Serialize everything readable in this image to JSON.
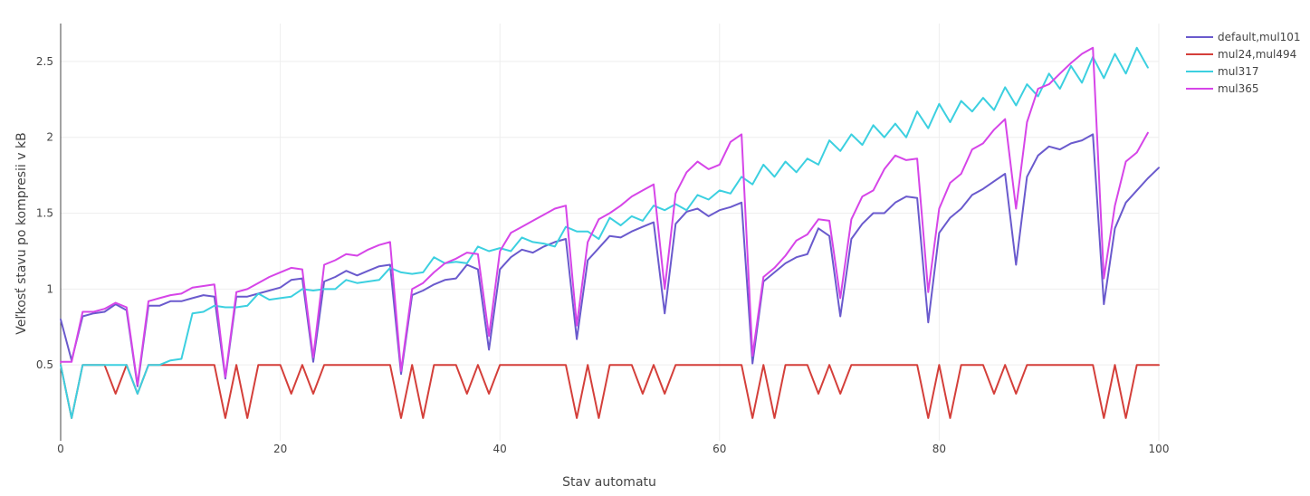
{
  "chart_data": {
    "type": "line",
    "xlabel": "Stav automatu",
    "ylabel": "Veľkosť stavu po kompresii v kB",
    "xlim": [
      0,
      100
    ],
    "ylim": [
      0,
      2.75
    ],
    "x_ticks": [
      0,
      20,
      40,
      60,
      80,
      100
    ],
    "y_ticks": [
      0.5,
      1,
      1.5,
      2,
      2.5
    ],
    "x_tick_labels": [
      "0",
      "20",
      "40",
      "60",
      "80",
      "100"
    ],
    "y_tick_labels": [
      "0.5",
      "1",
      "1.5",
      "2",
      "2.5"
    ],
    "grid": true,
    "legend_position": "top-right",
    "series": [
      {
        "name": "default,mul101",
        "color": "#6a5acd",
        "x": [
          0,
          1,
          2,
          3,
          4,
          5,
          6,
          7,
          8,
          9,
          10,
          11,
          12,
          13,
          14,
          15,
          16,
          17,
          18,
          19,
          20,
          21,
          22,
          23,
          24,
          25,
          26,
          27,
          28,
          29,
          30,
          31,
          32,
          33,
          34,
          35,
          36,
          37,
          38,
          39,
          40,
          41,
          42,
          43,
          44,
          45,
          46,
          47,
          48,
          49,
          50,
          51,
          52,
          53,
          54,
          55,
          56,
          57,
          58,
          59,
          60,
          61,
          62,
          63,
          64,
          65,
          66,
          67,
          68,
          69,
          70,
          71,
          72,
          73,
          74,
          75,
          76,
          77,
          78,
          79,
          80,
          81,
          82,
          83,
          84,
          85,
          86,
          87,
          88,
          89,
          90,
          91,
          92,
          93,
          94,
          95,
          96,
          97,
          98,
          99,
          100
        ],
        "y": [
          0.8,
          0.53,
          0.82,
          0.84,
          0.85,
          0.9,
          0.86,
          0.36,
          0.89,
          0.89,
          0.92,
          0.92,
          0.94,
          0.96,
          0.95,
          0.41,
          0.95,
          0.95,
          0.97,
          0.99,
          1.01,
          1.06,
          1.07,
          0.52,
          1.05,
          1.08,
          1.12,
          1.09,
          1.12,
          1.15,
          1.16,
          0.44,
          0.96,
          0.99,
          1.03,
          1.06,
          1.07,
          1.16,
          1.13,
          0.6,
          1.13,
          1.21,
          1.26,
          1.24,
          1.28,
          1.31,
          1.33,
          0.67,
          1.19,
          1.27,
          1.35,
          1.34,
          1.38,
          1.41,
          1.44,
          0.84,
          1.43,
          1.51,
          1.53,
          1.48,
          1.52,
          1.54,
          1.57,
          0.51,
          1.05,
          1.11,
          1.17,
          1.21,
          1.23,
          1.4,
          1.35,
          0.82,
          1.33,
          1.43,
          1.5,
          1.5,
          1.57,
          1.61,
          1.6,
          0.78,
          1.37,
          1.47,
          1.53,
          1.62,
          1.66,
          1.71,
          1.76,
          1.16,
          1.74,
          1.88,
          1.94,
          1.92,
          1.96,
          1.98,
          2.02,
          0.9,
          1.4,
          1.57,
          1.65,
          1.73,
          1.8
        ]
      },
      {
        "name": "mul24,mul494",
        "color": "#d43f3a",
        "x": [
          0,
          1,
          2,
          3,
          4,
          5,
          6,
          7,
          8,
          9,
          10,
          11,
          12,
          13,
          14,
          15,
          16,
          17,
          18,
          19,
          20,
          21,
          22,
          23,
          24,
          25,
          26,
          27,
          28,
          29,
          30,
          31,
          32,
          33,
          34,
          35,
          36,
          37,
          38,
          39,
          40,
          41,
          42,
          43,
          44,
          45,
          46,
          47,
          48,
          49,
          50,
          51,
          52,
          53,
          54,
          55,
          56,
          57,
          58,
          59,
          60,
          61,
          62,
          63,
          64,
          65,
          66,
          67,
          68,
          69,
          70,
          71,
          72,
          73,
          74,
          75,
          76,
          77,
          78,
          79,
          80,
          81,
          82,
          83,
          84,
          85,
          86,
          87,
          88,
          89,
          90,
          91,
          92,
          93,
          94,
          95,
          96,
          97,
          98,
          99,
          100
        ],
        "y": [
          0.5,
          0.15,
          0.5,
          0.5,
          0.5,
          0.31,
          0.5,
          0.31,
          0.5,
          0.5,
          0.5,
          0.5,
          0.5,
          0.5,
          0.5,
          0.15,
          0.5,
          0.15,
          0.5,
          0.5,
          0.5,
          0.31,
          0.5,
          0.31,
          0.5,
          0.5,
          0.5,
          0.5,
          0.5,
          0.5,
          0.5,
          0.15,
          0.5,
          0.15,
          0.5,
          0.5,
          0.5,
          0.31,
          0.5,
          0.31,
          0.5,
          0.5,
          0.5,
          0.5,
          0.5,
          0.5,
          0.5,
          0.15,
          0.5,
          0.15,
          0.5,
          0.5,
          0.5,
          0.31,
          0.5,
          0.31,
          0.5,
          0.5,
          0.5,
          0.5,
          0.5,
          0.5,
          0.5,
          0.15,
          0.5,
          0.15,
          0.5,
          0.5,
          0.5,
          0.31,
          0.5,
          0.31,
          0.5,
          0.5,
          0.5,
          0.5,
          0.5,
          0.5,
          0.5,
          0.15,
          0.5,
          0.15,
          0.5,
          0.5,
          0.5,
          0.31,
          0.5,
          0.31,
          0.5,
          0.5,
          0.5,
          0.5,
          0.5,
          0.5,
          0.5,
          0.15,
          0.5,
          0.15,
          0.5,
          0.5,
          0.5
        ]
      },
      {
        "name": "mul317",
        "color": "#3cd0e0",
        "x": [
          0,
          1,
          2,
          3,
          4,
          5,
          6,
          7,
          8,
          9,
          10,
          11,
          12,
          13,
          14,
          15,
          16,
          17,
          18,
          19,
          20,
          21,
          22,
          23,
          24,
          25,
          26,
          27,
          28,
          29,
          30,
          31,
          32,
          33,
          34,
          35,
          36,
          37,
          38,
          39,
          40,
          41,
          42,
          43,
          44,
          45,
          46,
          47,
          48,
          49,
          50,
          51,
          52,
          53,
          54,
          55,
          56,
          57,
          58,
          59,
          60,
          61,
          62,
          63,
          64,
          65,
          66,
          67,
          68,
          69,
          70,
          71,
          72,
          73,
          74,
          75,
          76,
          77,
          78,
          79,
          80,
          81,
          82,
          83,
          84,
          85,
          86,
          87,
          88,
          89,
          90,
          91,
          92,
          93,
          94,
          95,
          96,
          97,
          98,
          99
        ],
        "y": [
          0.5,
          0.15,
          0.5,
          0.5,
          0.5,
          0.5,
          0.5,
          0.31,
          0.5,
          0.5,
          0.53,
          0.54,
          0.84,
          0.85,
          0.89,
          0.88,
          0.88,
          0.89,
          0.97,
          0.93,
          0.94,
          0.95,
          1.0,
          0.99,
          1.0,
          1.0,
          1.06,
          1.04,
          1.05,
          1.06,
          1.14,
          1.11,
          1.1,
          1.11,
          1.21,
          1.17,
          1.18,
          1.17,
          1.28,
          1.25,
          1.27,
          1.25,
          1.34,
          1.31,
          1.3,
          1.28,
          1.41,
          1.38,
          1.38,
          1.33,
          1.47,
          1.42,
          1.48,
          1.45,
          1.55,
          1.52,
          1.56,
          1.52,
          1.62,
          1.59,
          1.65,
          1.63,
          1.74,
          1.69,
          1.82,
          1.74,
          1.84,
          1.77,
          1.86,
          1.82,
          1.98,
          1.91,
          2.02,
          1.95,
          2.08,
          2.0,
          2.09,
          2.0,
          2.17,
          2.06,
          2.22,
          2.1,
          2.24,
          2.17,
          2.26,
          2.18,
          2.33,
          2.21,
          2.35,
          2.27,
          2.42,
          2.32,
          2.47,
          2.36,
          2.53,
          2.39,
          2.55,
          2.42,
          2.59,
          2.46
        ]
      },
      {
        "name": "mul365",
        "color": "#d645e8",
        "x": [
          0,
          1,
          2,
          3,
          4,
          5,
          6,
          7,
          8,
          9,
          10,
          11,
          12,
          13,
          14,
          15,
          16,
          17,
          18,
          19,
          20,
          21,
          22,
          23,
          24,
          25,
          26,
          27,
          28,
          29,
          30,
          31,
          32,
          33,
          34,
          35,
          36,
          37,
          38,
          39,
          40,
          41,
          42,
          43,
          44,
          45,
          46,
          47,
          48,
          49,
          50,
          51,
          52,
          53,
          54,
          55,
          56,
          57,
          58,
          59,
          60,
          61,
          62,
          63,
          64,
          65,
          66,
          67,
          68,
          69,
          70,
          71,
          72,
          73,
          74,
          75,
          76,
          77,
          78,
          79,
          80,
          81,
          82,
          83,
          84,
          85,
          86,
          87,
          88,
          89,
          90,
          91,
          92,
          93,
          94,
          95,
          96,
          97,
          98,
          99
        ],
        "y": [
          0.52,
          0.52,
          0.85,
          0.85,
          0.87,
          0.91,
          0.88,
          0.37,
          0.92,
          0.94,
          0.96,
          0.97,
          1.01,
          1.02,
          1.03,
          0.42,
          0.98,
          1.0,
          1.04,
          1.08,
          1.11,
          1.14,
          1.13,
          0.55,
          1.16,
          1.19,
          1.23,
          1.22,
          1.26,
          1.29,
          1.31,
          0.46,
          1.0,
          1.04,
          1.11,
          1.17,
          1.2,
          1.24,
          1.23,
          0.69,
          1.25,
          1.37,
          1.41,
          1.45,
          1.49,
          1.53,
          1.55,
          0.76,
          1.31,
          1.46,
          1.5,
          1.55,
          1.61,
          1.65,
          1.69,
          1.0,
          1.63,
          1.77,
          1.84,
          1.79,
          1.82,
          1.97,
          2.02,
          0.56,
          1.08,
          1.14,
          1.22,
          1.32,
          1.36,
          1.46,
          1.45,
          0.94,
          1.46,
          1.61,
          1.65,
          1.79,
          1.88,
          1.85,
          1.86,
          0.98,
          1.53,
          1.7,
          1.76,
          1.92,
          1.96,
          2.05,
          2.12,
          1.53,
          2.1,
          2.32,
          2.35,
          2.42,
          2.49,
          2.55,
          2.59,
          1.07,
          1.55,
          1.84,
          1.9,
          2.03
        ]
      }
    ]
  }
}
